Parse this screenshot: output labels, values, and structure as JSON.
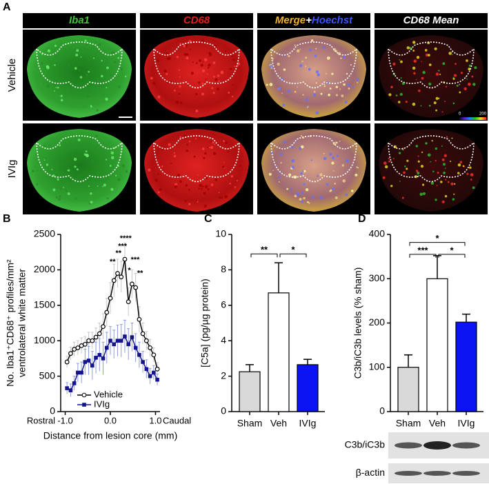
{
  "panel_a": {
    "label": "A",
    "column_headers": [
      [
        "Iba1"
      ],
      [
        "CD68"
      ],
      [
        "Merge",
        "+",
        "Hoechst"
      ],
      [
        "CD68 Mean"
      ]
    ],
    "header_colors": [
      [
        "#3ec43e"
      ],
      [
        "#e02020"
      ],
      [
        "#f0b428",
        "#ffffff",
        "#3a55ff"
      ],
      [
        "#ffffff"
      ]
    ],
    "row_labels": [
      "Vehicle",
      "IVIg"
    ],
    "colorbar_labels": [
      0,
      200
    ]
  },
  "chart_data": [
    {
      "type": "line",
      "panel_label": "B",
      "ylabel": [
        "No. Iba1⁺CD68⁺ profiles/mm²",
        "ventrolateral white matter"
      ],
      "xlabel": "Distance from lesion core (mm)",
      "direction_labels": [
        "Rostral",
        "Caudal"
      ],
      "x": [
        -0.96,
        -0.88,
        -0.8,
        -0.72,
        -0.64,
        -0.56,
        -0.48,
        -0.4,
        -0.32,
        -0.24,
        -0.16,
        -0.08,
        0.0,
        0.08,
        0.16,
        0.24,
        0.32,
        0.4,
        0.48,
        0.56,
        0.64,
        0.72,
        0.8,
        0.88,
        0.96,
        1.04
      ],
      "series": [
        {
          "name": "Vehicle",
          "color": "#000000",
          "marker": "circle",
          "error_color": "#c8c8c8",
          "values": [
            700,
            820,
            880,
            900,
            930,
            950,
            1000,
            1000,
            1050,
            1100,
            1200,
            1400,
            1600,
            1850,
            1950,
            1900,
            2150,
            1550,
            1800,
            1750,
            1300,
            1100,
            1000,
            900,
            800,
            600
          ],
          "errors": [
            80,
            90,
            100,
            100,
            110,
            110,
            120,
            120,
            130,
            150,
            180,
            200,
            220,
            230,
            200,
            220,
            230,
            200,
            200,
            200,
            180,
            150,
            130,
            120,
            100,
            90
          ]
        },
        {
          "name": "IVIg",
          "color": "#14148c",
          "marker": "square",
          "error_color": "#8c9ce0",
          "values": [
            330,
            300,
            400,
            550,
            550,
            700,
            720,
            650,
            760,
            800,
            750,
            900,
            1000,
            950,
            1000,
            1000,
            1060,
            950,
            1050,
            900,
            800,
            700,
            600,
            500,
            550,
            450
          ],
          "errors": [
            80,
            90,
            100,
            130,
            150,
            180,
            200,
            200,
            220,
            230,
            230,
            220,
            200,
            200,
            220,
            230,
            230,
            220,
            200,
            200,
            180,
            150,
            130,
            110,
            100,
            80
          ]
        }
      ],
      "xlim": [
        -1.1,
        1.1
      ],
      "xticks": [
        {
          "value": -1,
          "label": "-1.0"
        },
        {
          "value": 0,
          "label": "0.0"
        },
        {
          "value": 1,
          "label": "1.0"
        }
      ],
      "ylim": [
        0,
        2500
      ],
      "yticks": [
        0,
        500,
        1000,
        1500,
        2000,
        2500
      ],
      "legend": "lower left",
      "annotations": [
        {
          "text": "**",
          "x": 0.05,
          "y": 2110
        },
        {
          "text": "**",
          "x": 0.18,
          "y": 2230
        },
        {
          "text": "***",
          "x": 0.27,
          "y": 2330
        },
        {
          "text": "****",
          "x": 0.34,
          "y": 2440
        },
        {
          "text": "*",
          "x": 0.42,
          "y": 1990
        },
        {
          "text": "***",
          "x": 0.55,
          "y": 2140
        },
        {
          "text": "**",
          "x": 0.66,
          "y": 1950
        }
      ]
    },
    {
      "type": "bar",
      "panel_label": "C",
      "ylabel": [
        "[C5a] (pg/µg protein)"
      ],
      "categories": [
        "Sham",
        "Veh",
        "IVIg"
      ],
      "values": [
        2.25,
        6.7,
        2.65
      ],
      "errors": [
        0.4,
        1.7,
        0.3
      ],
      "colors": [
        "#d9d9d9",
        "#ffffff",
        "#0a14f0"
      ],
      "ylim": [
        0,
        10
      ],
      "yticks": [
        0,
        2,
        4,
        6,
        8,
        10
      ],
      "brackets": [
        {
          "from": 0,
          "to": 1,
          "label": "**",
          "y": 8.9
        },
        {
          "from": 1,
          "to": 2,
          "label": "*",
          "y": 8.9
        }
      ]
    },
    {
      "type": "bar",
      "panel_label": "D",
      "ylabel": [
        "C3b/iC3b levels (% sham)"
      ],
      "categories": [
        "Sham",
        "Veh",
        "IVIg"
      ],
      "values": [
        100,
        300,
        202
      ],
      "errors": [
        28,
        52,
        18
      ],
      "colors": [
        "#d9d9d9",
        "#ffffff",
        "#0a14f0"
      ],
      "ylim": [
        0,
        400
      ],
      "yticks": [
        0,
        100,
        200,
        300,
        400
      ],
      "brackets": [
        {
          "from": 0,
          "to": 2,
          "label": "*",
          "y": 382
        },
        {
          "from": 0,
          "to": 1,
          "label": "***",
          "y": 355
        },
        {
          "from": 1,
          "to": 2,
          "label": "*",
          "y": 355
        }
      ],
      "blot_labels": [
        "C3b/iC3b",
        "β-actin"
      ]
    }
  ]
}
